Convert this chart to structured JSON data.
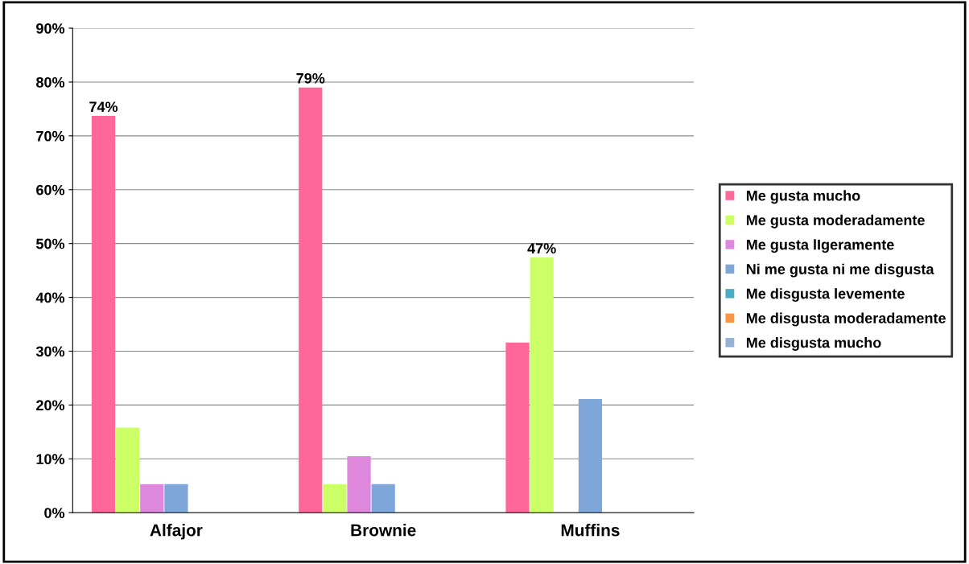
{
  "chart_data": {
    "type": "bar",
    "categories": [
      "Alfajor",
      "Brownie",
      "Muffins"
    ],
    "series": [
      {
        "name": "Me gusta mucho",
        "color": "#ff6699",
        "values": [
          73.7,
          79.0,
          31.6
        ],
        "value_labels": [
          "74%",
          "79%",
          null
        ]
      },
      {
        "name": "Me gusta moderadamente",
        "color": "#ccff66",
        "values": [
          15.8,
          5.3,
          47.4
        ],
        "value_labels": [
          null,
          null,
          "47%"
        ]
      },
      {
        "name": "Me gusta lIgeramente",
        "color": "#dd88dd",
        "values": [
          5.3,
          10.5,
          0
        ]
      },
      {
        "name": "Ni me gusta ni me disgusta",
        "color": "#7fa6d9",
        "values": [
          5.3,
          5.3,
          21.1
        ]
      },
      {
        "name": "Me disgusta levemente",
        "color": "#4bacc6",
        "values": [
          0,
          0,
          0
        ]
      },
      {
        "name": "Me disgusta moderadamente",
        "color": "#f79646",
        "values": [
          0,
          0,
          0
        ]
      },
      {
        "name": "Me disgusta mucho",
        "color": "#95b3d7",
        "values": [
          0,
          0,
          0
        ]
      }
    ],
    "ylim": [
      0,
      90
    ],
    "yticks": [
      {
        "value": 0,
        "label": "0%"
      },
      {
        "value": 10,
        "label": "10%"
      },
      {
        "value": 20,
        "label": "20%"
      },
      {
        "value": 30,
        "label": "30%"
      },
      {
        "value": 40,
        "label": "40%"
      },
      {
        "value": 50,
        "label": "50%"
      },
      {
        "value": 60,
        "label": "60%"
      },
      {
        "value": 70,
        "label": "70%"
      },
      {
        "value": 80,
        "label": "80%"
      },
      {
        "value": 90,
        "label": "90%"
      }
    ],
    "grid": "y",
    "legend": "right"
  }
}
